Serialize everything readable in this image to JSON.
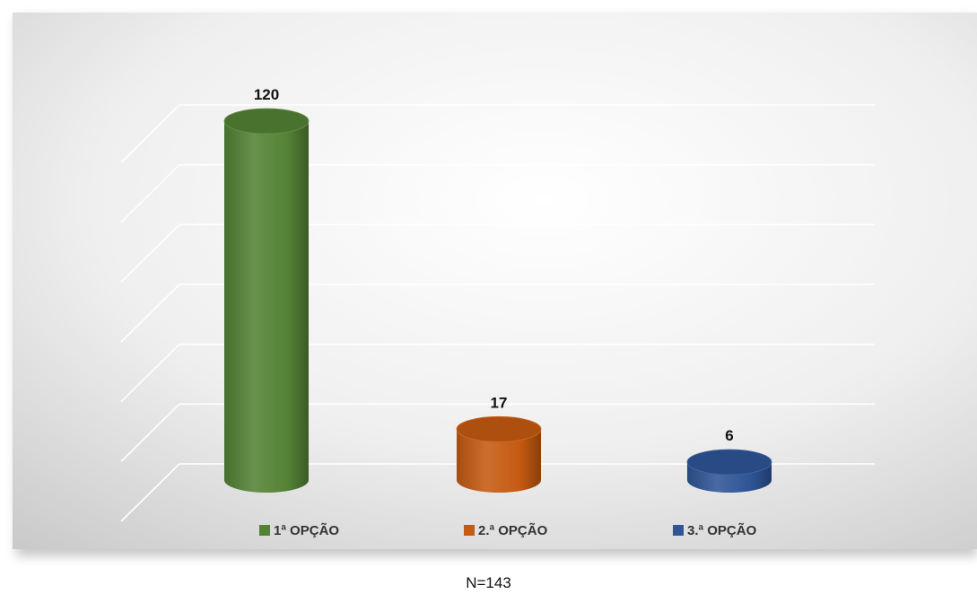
{
  "chart_data": {
    "type": "bar",
    "style": "3d-cylinder",
    "categories": [
      "1ª OPÇÃO",
      "2.ª OPÇÃO",
      "3.ª OPÇÃO"
    ],
    "values": [
      120,
      17,
      6
    ],
    "colors": [
      "#548235",
      "#C55A11",
      "#2F5597"
    ],
    "data_labels": [
      "120",
      "17",
      "6"
    ],
    "ylim": [
      0,
      120
    ],
    "grid": true,
    "legend_position": "bottom",
    "title": "",
    "xlabel": "",
    "ylabel": ""
  },
  "note": "N=143"
}
